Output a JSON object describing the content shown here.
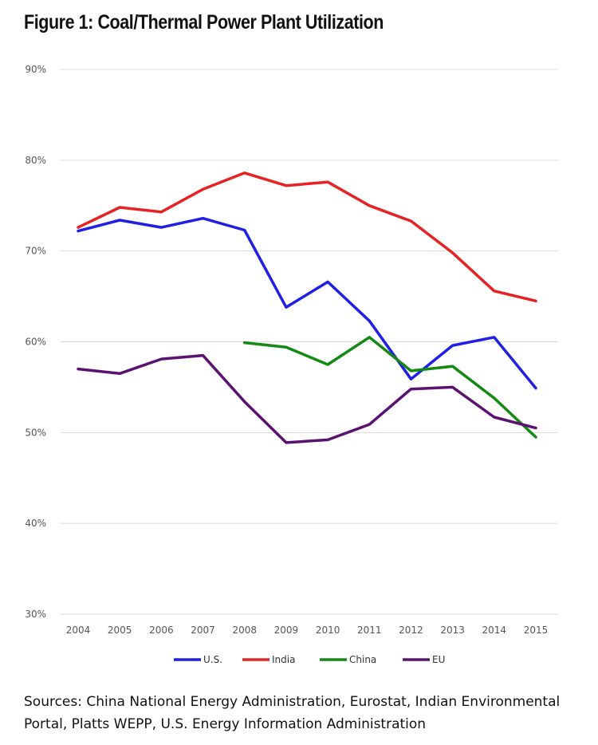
{
  "title": "Figure 1: Coal/Thermal Power Plant Utilization",
  "sources": "Sources: China National Energy Administration, Eurostat, Indian Environmental Portal, Platts WEPP, U.S. Energy Information Administration",
  "chart_data": {
    "type": "line",
    "title": "Figure 1: Coal/Thermal Power Plant Utilization",
    "xlabel": "",
    "ylabel": "",
    "x": [
      "2004",
      "2005",
      "2006",
      "2007",
      "2008",
      "2009",
      "2010",
      "2011",
      "2012",
      "2013",
      "2014",
      "2015"
    ],
    "ylim": [
      30,
      90
    ],
    "yticks": [
      30,
      40,
      50,
      60,
      70,
      80,
      90
    ],
    "ytick_labels": [
      "30%",
      "40%",
      "50%",
      "60%",
      "70%",
      "80%",
      "90%"
    ],
    "grid": true,
    "legend_position": "bottom",
    "series": [
      {
        "name": "U.S.",
        "color": "#1f1fe6",
        "values": [
          72.2,
          73.4,
          72.6,
          73.6,
          72.3,
          63.8,
          66.6,
          62.3,
          55.9,
          59.6,
          60.5,
          54.9
        ]
      },
      {
        "name": "India",
        "color": "#e62222",
        "values": [
          72.6,
          74.8,
          74.3,
          76.8,
          78.6,
          77.2,
          77.6,
          75.0,
          73.3,
          69.8,
          65.6,
          64.5
        ]
      },
      {
        "name": "China",
        "color": "#138a13",
        "values": [
          null,
          null,
          null,
          null,
          59.9,
          59.4,
          57.5,
          60.5,
          56.8,
          57.3,
          53.8,
          49.5
        ]
      },
      {
        "name": "EU",
        "color": "#5b1170",
        "values": [
          57.0,
          56.5,
          58.1,
          58.5,
          53.4,
          48.9,
          49.2,
          50.9,
          54.8,
          55.0,
          51.7,
          50.5
        ]
      }
    ]
  }
}
